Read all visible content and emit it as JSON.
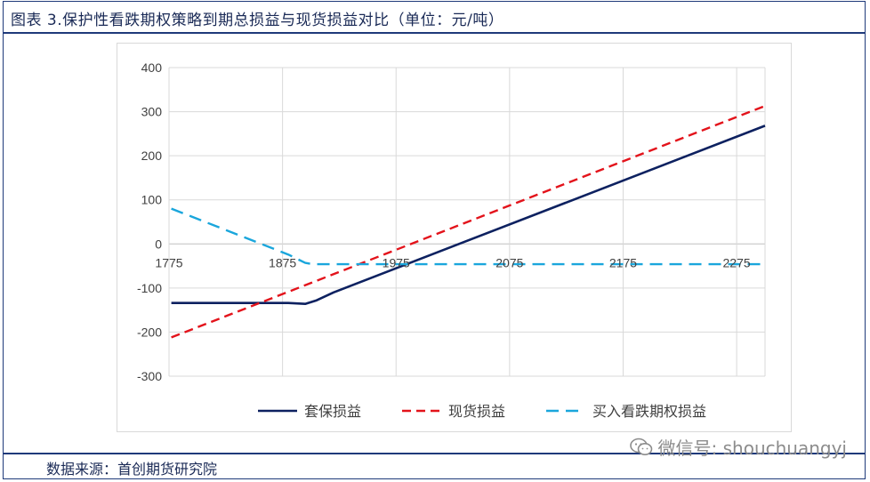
{
  "figure": {
    "title": "图表 3.保护性看跌期权策略到期总损益与现货损益对比（单位：元/吨）",
    "source": "数据来源：首创期货研究院",
    "watermark_text": "微信号: shouchuangyj",
    "watermark_icon": "wechat-icon"
  },
  "chart_data": {
    "type": "line",
    "title": "",
    "xlabel": "",
    "ylabel": "",
    "xlim": [
      1775,
      2300
    ],
    "ylim": [
      -300,
      400
    ],
    "x_ticks": [
      1775,
      1875,
      1975,
      2075,
      2175,
      2275
    ],
    "y_ticks": [
      -300,
      -200,
      -100,
      0,
      100,
      200,
      300,
      400
    ],
    "grid": true,
    "legend_position": "bottom",
    "series": [
      {
        "name": "套保损益",
        "color": "#0d2160",
        "style": "solid",
        "x": [
          1777,
          1880,
          1895,
          1905,
          1920,
          2300
        ],
        "y": [
          -134,
          -134,
          -136,
          -128,
          -110,
          268
        ]
      },
      {
        "name": "现货损益",
        "color": "#e3131b",
        "style": "dashed",
        "x": [
          1777,
          2300
        ],
        "y": [
          -212,
          313
        ]
      },
      {
        "name": "买入看跌期权损益",
        "color": "#1aa6dc",
        "style": "dashed",
        "x": [
          1777,
          1880,
          1895,
          1902,
          2300
        ],
        "y": [
          80,
          -24,
          -43,
          -46,
          -46
        ]
      }
    ]
  }
}
